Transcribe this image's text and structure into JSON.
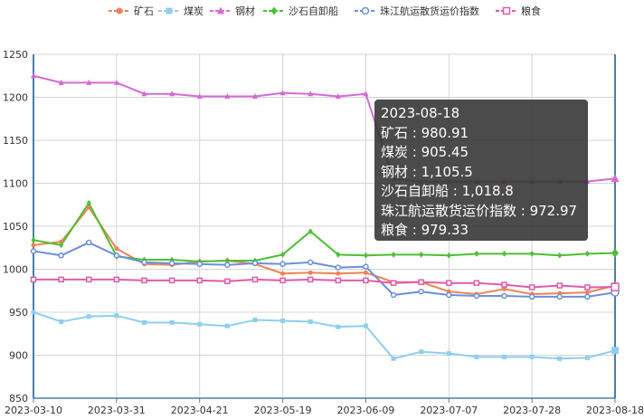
{
  "chart_data": {
    "type": "line",
    "title": "",
    "xlabel": "",
    "ylabel": "",
    "ylim": [
      850,
      1250
    ],
    "y_ticks": [
      "850",
      "900",
      "950",
      "1000",
      "1050",
      "1100",
      "1150",
      "1200",
      "1250"
    ],
    "x_ticks": [
      "2023-03-10",
      "2023-03-31",
      "2023-04-21",
      "2023-05-19",
      "2023-06-09",
      "2023-07-07",
      "2023-07-28",
      "2023-08-18"
    ],
    "grid": true,
    "legend_position": "top",
    "series": [
      {
        "name": "矿石",
        "color": "#ee8355",
        "marker": "circle",
        "values": [
          1028,
          1032,
          1072,
          1024,
          1006,
          1005,
          1009,
          1010,
          1006,
          995,
          996,
          995,
          996,
          985,
          985,
          974,
          971,
          977,
          971,
          972,
          973,
          980.91
        ]
      },
      {
        "name": "煤炭",
        "color": "#8fcfee",
        "marker": "square",
        "values": [
          950,
          939,
          945,
          946,
          938,
          938,
          936,
          934,
          941,
          940,
          939,
          933,
          934,
          896,
          904,
          902,
          898,
          898,
          898,
          896,
          897,
          905.45
        ]
      },
      {
        "name": "钢材",
        "color": "#d56ad5",
        "marker": "triangle",
        "values": [
          1225,
          1217,
          1217,
          1217,
          1204,
          1204,
          1201,
          1201,
          1201,
          1205,
          1204,
          1201,
          1204,
          1105,
          1102,
          1102,
          1102,
          1102,
          1102,
          1102,
          1102,
          1105.5
        ]
      },
      {
        "name": "沙石自卸船",
        "color": "#4bc034",
        "marker": "diamond",
        "values": [
          1034,
          1028,
          1077,
          1015,
          1011,
          1011,
          1009,
          1010,
          1010,
          1017,
          1044,
          1017,
          1016,
          1017,
          1017,
          1016,
          1018,
          1018,
          1018,
          1016,
          1018,
          1018.8
        ]
      },
      {
        "name": "珠江航运散货运价指数",
        "color": "#6a8fe0",
        "marker": "empty-circle",
        "values": [
          1021,
          1016,
          1031,
          1016,
          1008,
          1007,
          1006,
          1005,
          1007,
          1006,
          1008,
          1002,
          1003,
          970,
          974,
          970,
          969,
          969,
          968,
          968,
          968,
          972.97
        ]
      },
      {
        "name": "粮食",
        "color": "#e25aa8",
        "marker": "empty-square",
        "values": [
          988,
          988,
          988,
          988,
          987,
          987,
          987,
          986,
          988,
          987,
          988,
          987,
          987,
          984,
          985,
          984,
          984,
          982,
          979,
          981,
          979,
          979.33
        ]
      }
    ]
  },
  "tooltip": {
    "date": "2023-08-18",
    "lines": [
      "矿石 : 980.91",
      "煤炭 : 905.45",
      "钢材 : 1,105.5",
      "沙石自卸船 : 1,018.8",
      "珠江航运散货运价指数 : 972.97",
      "粮食 : 979.33"
    ]
  }
}
